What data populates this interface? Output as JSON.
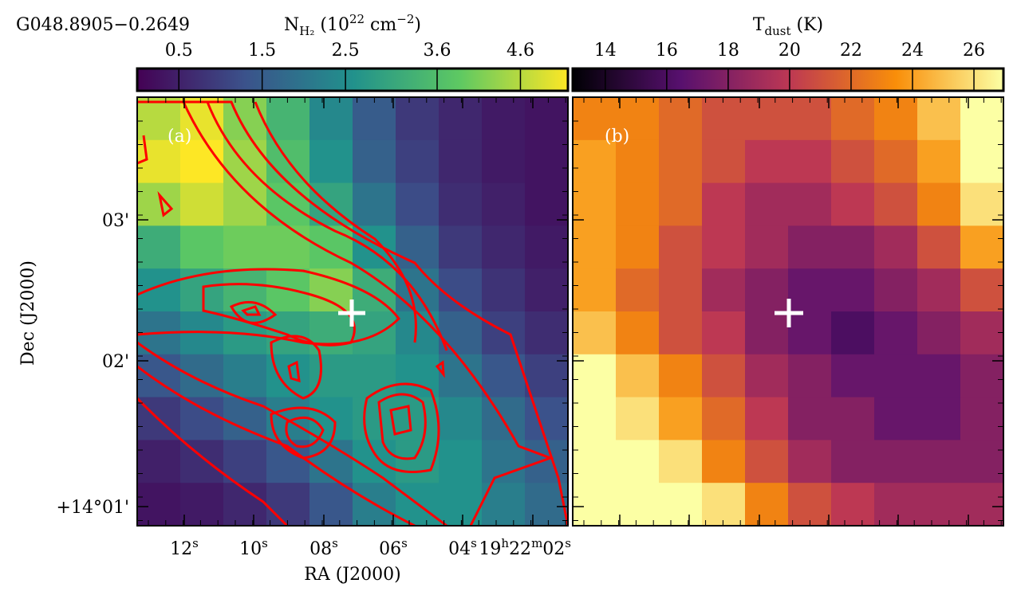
{
  "figure": {
    "title": "G048.8905−0.2649",
    "panel_a": {
      "label": "(a)",
      "colorbar_label": [
        "N",
        "H₂",
        " (10",
        "22",
        " cm",
        "−2",
        ")"
      ],
      "cmap": "viridis",
      "vlim": [
        0,
        5.17
      ],
      "ticks": [
        0.5,
        1.5,
        2.5,
        3.6,
        4.6
      ],
      "grid": [
        [
          4.6,
          5.0,
          4.2,
          3.4,
          2.4,
          1.5,
          0.9,
          0.6,
          0.4,
          0.3
        ],
        [
          5.0,
          5.2,
          4.4,
          3.6,
          2.6,
          1.6,
          1.0,
          0.6,
          0.4,
          0.3
        ],
        [
          4.4,
          4.8,
          4.4,
          3.8,
          3.0,
          2.0,
          1.2,
          0.7,
          0.5,
          0.3
        ],
        [
          3.2,
          3.8,
          4.0,
          4.0,
          3.8,
          2.6,
          1.6,
          0.9,
          0.6,
          0.4
        ],
        [
          2.6,
          3.0,
          3.4,
          3.8,
          4.2,
          3.2,
          2.0,
          1.2,
          0.8,
          0.5
        ],
        [
          2.0,
          2.4,
          2.8,
          3.0,
          3.2,
          3.0,
          2.4,
          1.6,
          1.0,
          0.7
        ],
        [
          1.4,
          1.8,
          2.2,
          2.6,
          2.8,
          2.8,
          2.6,
          2.0,
          1.4,
          1.0
        ],
        [
          0.9,
          1.2,
          1.6,
          2.2,
          2.6,
          2.8,
          2.8,
          2.4,
          1.8,
          1.3
        ],
        [
          0.5,
          0.7,
          1.0,
          1.4,
          2.0,
          2.6,
          2.8,
          2.6,
          2.0,
          1.6
        ],
        [
          0.3,
          0.4,
          0.6,
          0.9,
          1.4,
          2.2,
          2.6,
          2.6,
          2.2,
          1.8
        ]
      ]
    },
    "panel_b": {
      "label": "(b)",
      "colorbar_label": [
        "T",
        "dust",
        " (K)"
      ],
      "cmap": "inferno",
      "vlim": [
        12.94,
        26.96
      ],
      "ticks": [
        14,
        16,
        18,
        20,
        22,
        24,
        26
      ],
      "grid": [
        [
          23,
          23,
          22,
          21,
          21,
          21,
          22,
          23,
          25,
          27
        ],
        [
          24,
          23,
          22,
          21,
          20,
          20,
          21,
          22,
          24,
          27
        ],
        [
          24,
          23,
          22,
          20,
          19,
          19,
          20,
          21,
          23,
          26
        ],
        [
          24,
          23,
          21,
          20,
          19,
          18,
          18,
          19,
          21,
          24
        ],
        [
          24,
          22,
          21,
          19,
          18,
          17,
          17,
          18,
          19,
          21
        ],
        [
          25,
          23,
          21,
          20,
          18,
          17,
          16,
          17,
          18,
          19
        ],
        [
          27,
          25,
          23,
          21,
          19,
          18,
          17,
          17,
          17,
          18
        ],
        [
          27,
          26,
          24,
          22,
          20,
          18,
          18,
          17,
          17,
          18
        ],
        [
          27,
          27,
          26,
          23,
          21,
          19,
          18,
          18,
          18,
          18
        ],
        [
          27,
          27,
          27,
          26,
          23,
          21,
          20,
          19,
          19,
          19
        ]
      ]
    },
    "x_axis_label": "RA (J2000)",
    "y_axis_label": "Dec (J2000)",
    "ra_ticks": [
      [
        "12",
        "s"
      ],
      [
        "10",
        "s"
      ],
      [
        "08",
        "s"
      ],
      [
        "06",
        "s"
      ],
      [
        "04",
        "s"
      ],
      [
        "19",
        "h",
        "22",
        "m",
        "02",
        "s"
      ]
    ],
    "dec_ticks": [
      "03'",
      "02'",
      "+14°01'"
    ]
  }
}
